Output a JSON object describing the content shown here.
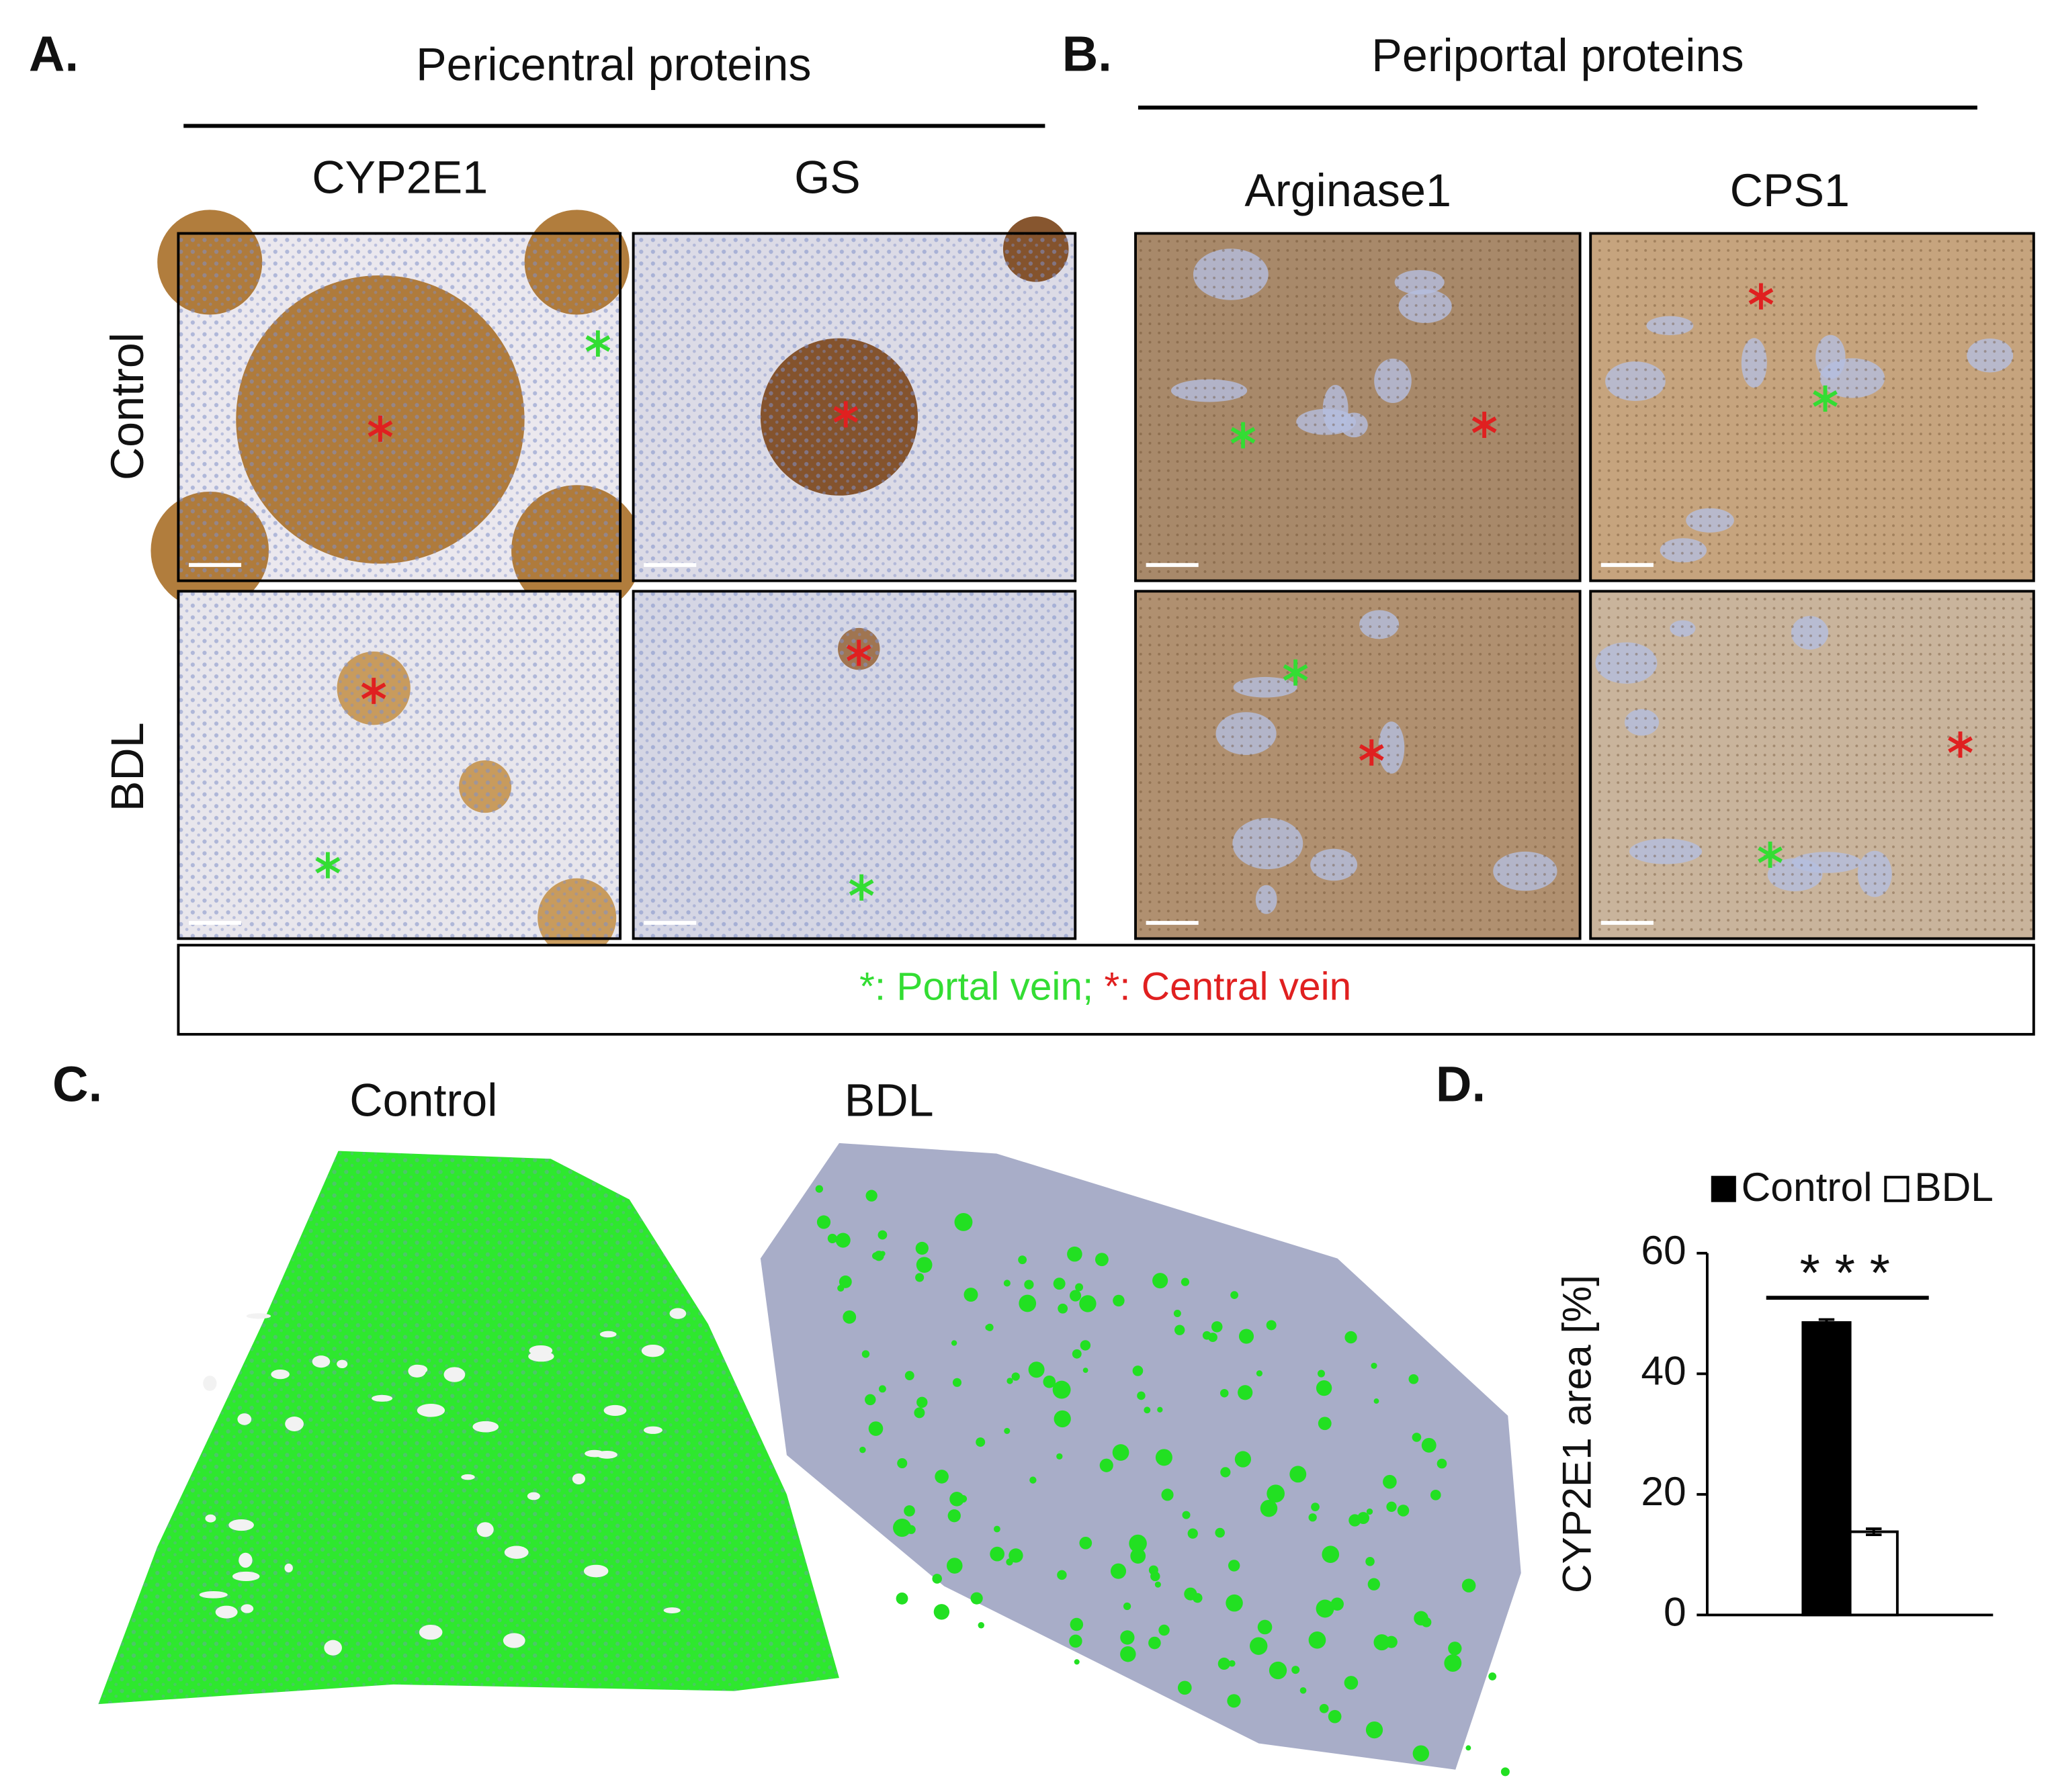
{
  "panel_a": {
    "label": "A.",
    "title": "Pericentral proteins",
    "columns": [
      "CYP2E1",
      "GS"
    ]
  },
  "panel_b": {
    "label": "B.",
    "title": "Periportal proteins",
    "columns": [
      "Arginase1",
      "CPS1"
    ]
  },
  "rows": [
    "Control",
    "BDL"
  ],
  "key": {
    "portal_symbol": "*",
    "portal_label": ": Portal vein; ",
    "central_symbol": "*",
    "central_label": ": Central vein"
  },
  "panel_c": {
    "label": "C.",
    "columns": [
      "Control",
      "BDL"
    ]
  },
  "panel_d": {
    "label": "D."
  },
  "chart_data": {
    "type": "bar",
    "categories": [
      null
    ],
    "series": [
      {
        "name": "Control",
        "color": "#000000",
        "values": [
          48.5
        ],
        "errors": [
          0.5
        ]
      },
      {
        "name": "BDL",
        "color": "#ffffff",
        "values": [
          13.8
        ],
        "errors": [
          0.5
        ]
      }
    ],
    "y_label": "CYP2E1 area [%]",
    "ylim": [
      0,
      60
    ],
    "yticks": [
      0,
      20,
      40,
      60
    ],
    "annotation": "* * *"
  }
}
